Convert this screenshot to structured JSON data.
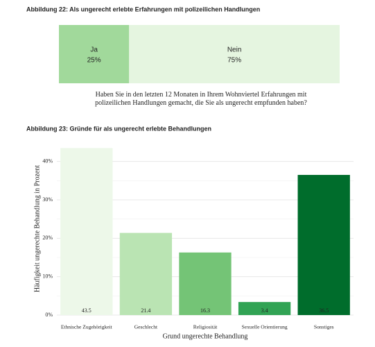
{
  "chart_data": [
    {
      "type": "stacked-bar",
      "title": "Abbildung 22: Als ungerecht erlebte Erfahrungen mit polizeilichen Handlungen",
      "xlabel": "Haben Sie in den letzten 12 Monaten in Ihrem Wohnviertel Erfahrungen mit polizeilichen Handlungen gemacht, die Sie als ungerecht empfunden haben?",
      "series": [
        {
          "name": "Ja",
          "color": "#a1d99b",
          "values": [
            25
          ],
          "value_labels": [
            "25%"
          ]
        },
        {
          "name": "Nein",
          "color": "#e5f5e0",
          "values": [
            75
          ],
          "value_labels": [
            "75%"
          ]
        }
      ]
    },
    {
      "type": "bar",
      "title": "Abbildung 23: Gründe für als ungerecht erlebte Behandlungen",
      "xlabel": "Grund ungerechte Behandlung",
      "ylabel": "Häufigkeit ungerechte Behandlung in Prozent",
      "categories": [
        "Ethnische Zugehörigkeit",
        "Geschlecht",
        "Religiosität",
        "Sexuelle Orientierung",
        "Sonstiges"
      ],
      "values": [
        43.5,
        21.4,
        16.3,
        3.4,
        36.5
      ],
      "colors": [
        "#edf8e9",
        "#bae4b3",
        "#74c476",
        "#31a354",
        "#006d2c"
      ],
      "ylim": [
        0,
        45
      ],
      "yticks": [
        {
          "value": 0,
          "label": "0%"
        },
        {
          "value": 10,
          "label": "10%"
        },
        {
          "value": 20,
          "label": "20%"
        },
        {
          "value": 30,
          "label": "30%"
        },
        {
          "value": 40,
          "label": "40%"
        }
      ],
      "grid": true
    }
  ]
}
